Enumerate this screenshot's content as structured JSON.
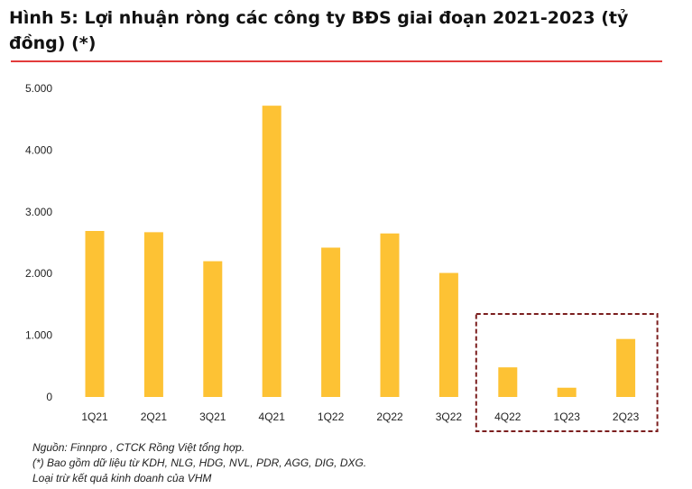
{
  "title": "Hình 5: Lợi nhuận ròng các công ty BĐS giai đoạn 2021-2023 (tỷ đồng) (*)",
  "notes": {
    "source": "Nguồn: Finnpro , CTCK Rồng Việt tổng hợp.",
    "footnote": "(*) Bao gồm dữ liệu từ KDH, NLG, HDG, NVL, PDR, AGG, DIG, DXG.",
    "exclusion": "Loại trừ kết quả kinh doanh của VHM"
  },
  "colors": {
    "bar": "#FDC234",
    "rule": "#E23B3B",
    "highlight_box": "#7B1E1E"
  },
  "chart_data": {
    "type": "bar",
    "categories": [
      "1Q21",
      "2Q21",
      "3Q21",
      "4Q21",
      "1Q22",
      "2Q22",
      "3Q22",
      "4Q22",
      "1Q23",
      "2Q23"
    ],
    "values": [
      2690,
      2670,
      2200,
      4720,
      2420,
      2650,
      2010,
      480,
      150,
      940
    ],
    "ylim": [
      0,
      5000
    ],
    "yticks": [
      0,
      1000,
      2000,
      3000,
      4000,
      5000
    ],
    "ytick_labels": [
      "0",
      "1.000",
      "2.000",
      "3.000",
      "4.000",
      "5.000"
    ],
    "grid": false,
    "highlighted_categories": [
      "4Q22",
      "1Q23",
      "2Q23"
    ]
  }
}
